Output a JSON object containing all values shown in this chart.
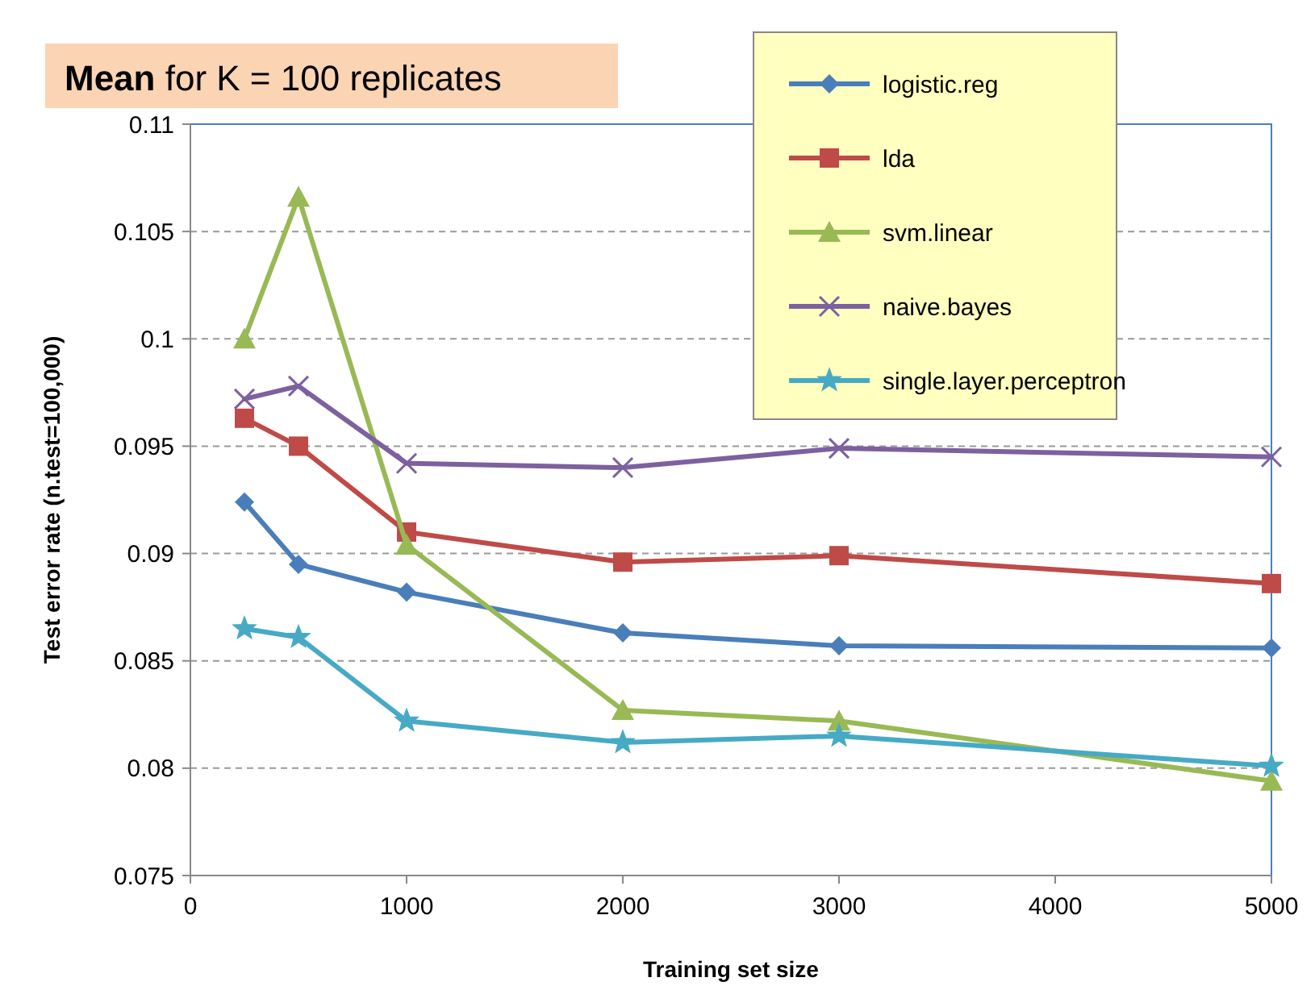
{
  "chart_data": {
    "type": "line",
    "title": "Mean for K = 100 replicates",
    "xlabel": "Training set size",
    "ylabel": "Test error rate (n.test=100,000)",
    "x": [
      250,
      500,
      1000,
      2000,
      3000,
      5000
    ],
    "xlim": [
      0,
      5000
    ],
    "xticks": [
      0,
      1000,
      2000,
      3000,
      4000,
      5000
    ],
    "ylim": [
      0.075,
      0.11
    ],
    "yticks": [
      0.075,
      0.08,
      0.085,
      0.09,
      0.095,
      0.1,
      0.105,
      0.11
    ],
    "grid": "y",
    "legend": "top right",
    "series": [
      {
        "name": "logistic.reg",
        "color": "#4a7ebb",
        "marker": "diamond",
        "values": [
          0.0924,
          0.0895,
          0.0882,
          0.0863,
          0.0857,
          0.0856
        ]
      },
      {
        "name": "lda",
        "color": "#be4b48",
        "marker": "square",
        "values": [
          0.0963,
          0.095,
          0.091,
          0.0896,
          0.0899,
          0.0886
        ]
      },
      {
        "name": "svm.linear",
        "color": "#98b954",
        "marker": "triangle",
        "values": [
          0.1,
          0.1066,
          0.0904,
          0.0827,
          0.0822,
          0.0794
        ]
      },
      {
        "name": "naive.bayes",
        "color": "#7d60a0",
        "marker": "cross",
        "values": [
          0.0972,
          0.0978,
          0.0942,
          0.094,
          0.0949,
          0.0945
        ]
      },
      {
        "name": "single.layer.perceptron",
        "color": "#46aac5",
        "marker": "star",
        "values": [
          0.0865,
          0.0861,
          0.0822,
          0.0812,
          0.0815,
          0.0801
        ]
      }
    ]
  }
}
